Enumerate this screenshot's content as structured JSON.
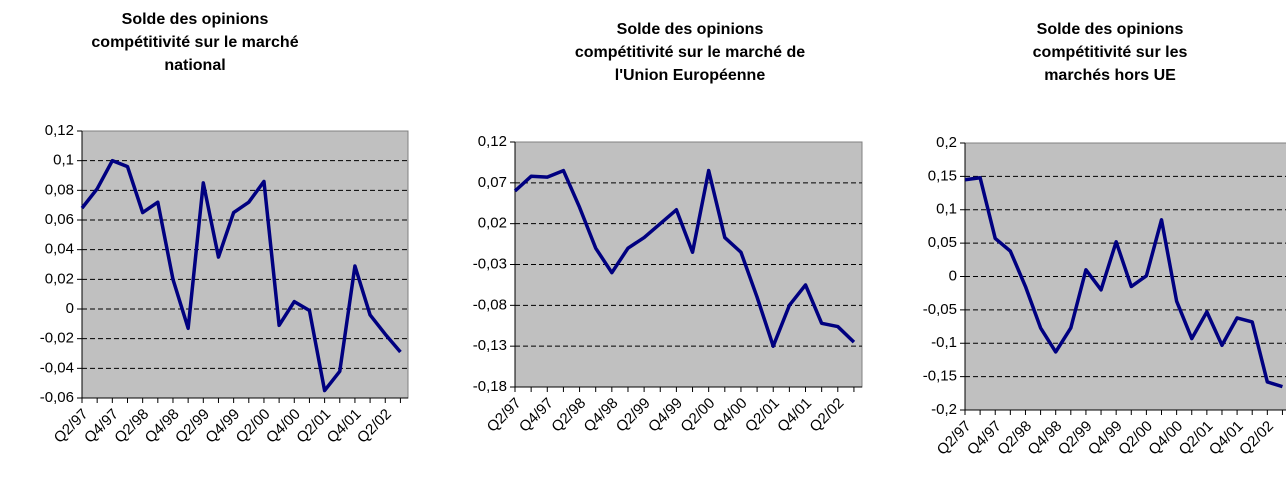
{
  "chart_data": [
    {
      "type": "line",
      "title": [
        "Solde des opinions",
        "compétitivité sur le marché",
        "national"
      ],
      "categories": [
        "Q2/97",
        null,
        "Q4/97",
        null,
        "Q2/98",
        null,
        "Q4/98",
        null,
        "Q2/99",
        null,
        "Q4/99",
        null,
        "Q2/00",
        null,
        "Q4/00",
        null,
        "Q2/01",
        null,
        "Q4/01",
        null,
        "Q2/02",
        null
      ],
      "series": [
        {
          "color": "#000080",
          "values": [
            0.068,
            0.081,
            0.1,
            0.096,
            0.065,
            0.072,
            0.02,
            -0.013,
            0.085,
            0.035,
            0.065,
            0.072,
            0.086,
            -0.011,
            0.005,
            -0.001,
            -0.055,
            -0.042,
            0.029,
            -0.004,
            -0.017,
            -0.029
          ]
        }
      ],
      "ylim": [
        -0.06,
        0.12
      ],
      "yticks": [
        {
          "value": -0.06,
          "label": "-0,06"
        },
        {
          "value": -0.04,
          "label": "-0,04"
        },
        {
          "value": -0.02,
          "label": "-0,02"
        },
        0,
        {
          "value": 0.02,
          "label": "0,02"
        },
        {
          "value": 0.04,
          "label": "0,04"
        },
        {
          "value": 0.06,
          "label": "0,06"
        },
        {
          "value": 0.08,
          "label": "0,08"
        },
        {
          "value": 0.1,
          "label": "0,1"
        },
        {
          "value": 0.12,
          "label": "0,12"
        }
      ],
      "grid": true
    },
    {
      "type": "line",
      "title": [
        "Solde des opinions",
        "compétitivité sur le marché de",
        "l'Union Européenne"
      ],
      "categories": [
        "Q2/97",
        null,
        "Q4/97",
        null,
        "Q2/98",
        null,
        "Q4/98",
        null,
        "Q2/99",
        null,
        "Q4/99",
        null,
        "Q2/00",
        null,
        "Q4/00",
        null,
        "Q2/01",
        null,
        "Q4/01",
        null,
        "Q2/02",
        null
      ],
      "series": [
        {
          "color": "#000080",
          "values": [
            0.06,
            0.078,
            0.077,
            0.085,
            0.04,
            -0.01,
            -0.04,
            -0.01,
            0.003,
            0.02,
            0.037,
            -0.015,
            0.085,
            0.003,
            -0.015,
            -0.07,
            -0.13,
            -0.08,
            -0.055,
            -0.102,
            -0.106,
            -0.125
          ]
        }
      ],
      "ylim": [
        -0.18,
        0.12
      ],
      "yticks": [
        {
          "value": -0.18,
          "label": "-0,18"
        },
        {
          "value": -0.13,
          "label": "-0,13"
        },
        {
          "value": -0.08,
          "label": "-0,08"
        },
        {
          "value": -0.03,
          "label": "-0,03"
        },
        {
          "value": 0.02,
          "label": "0,02"
        },
        {
          "value": 0.07,
          "label": "0,07"
        },
        {
          "value": 0.12,
          "label": "0,12"
        }
      ],
      "grid": true
    },
    {
      "type": "line",
      "title": [
        "Solde des opinions",
        "compétitivité sur les",
        "marchés hors UE"
      ],
      "categories": [
        "Q2/97",
        null,
        "Q4/97",
        null,
        "Q2/98",
        null,
        "Q4/98",
        null,
        "Q2/99",
        null,
        "Q4/99",
        null,
        "Q2/00",
        null,
        "Q4/00",
        null,
        "Q2/01",
        null,
        "Q4/01",
        null,
        "Q2/02",
        null
      ],
      "series": [
        {
          "color": "#000080",
          "values": [
            0.145,
            0.148,
            0.057,
            0.038,
            -0.015,
            -0.077,
            -0.113,
            -0.077,
            0.01,
            -0.02,
            0.052,
            -0.015,
            0.001,
            0.085,
            -0.037,
            -0.093,
            -0.053,
            -0.103,
            -0.062,
            -0.068,
            -0.158,
            -0.165
          ]
        }
      ],
      "ylim": [
        -0.2,
        0.2
      ],
      "yticks": [
        {
          "value": -0.2,
          "label": "-0,2"
        },
        {
          "value": -0.15,
          "label": "-0,15"
        },
        {
          "value": -0.1,
          "label": "-0,1"
        },
        {
          "value": -0.05,
          "label": "-0,05"
        },
        0,
        {
          "value": 0.05,
          "label": "0,05"
        },
        {
          "value": 0.1,
          "label": "0,1"
        },
        {
          "value": 0.15,
          "label": "0,15"
        },
        {
          "value": 0.2,
          "label": "0,2"
        }
      ],
      "grid": true
    }
  ]
}
